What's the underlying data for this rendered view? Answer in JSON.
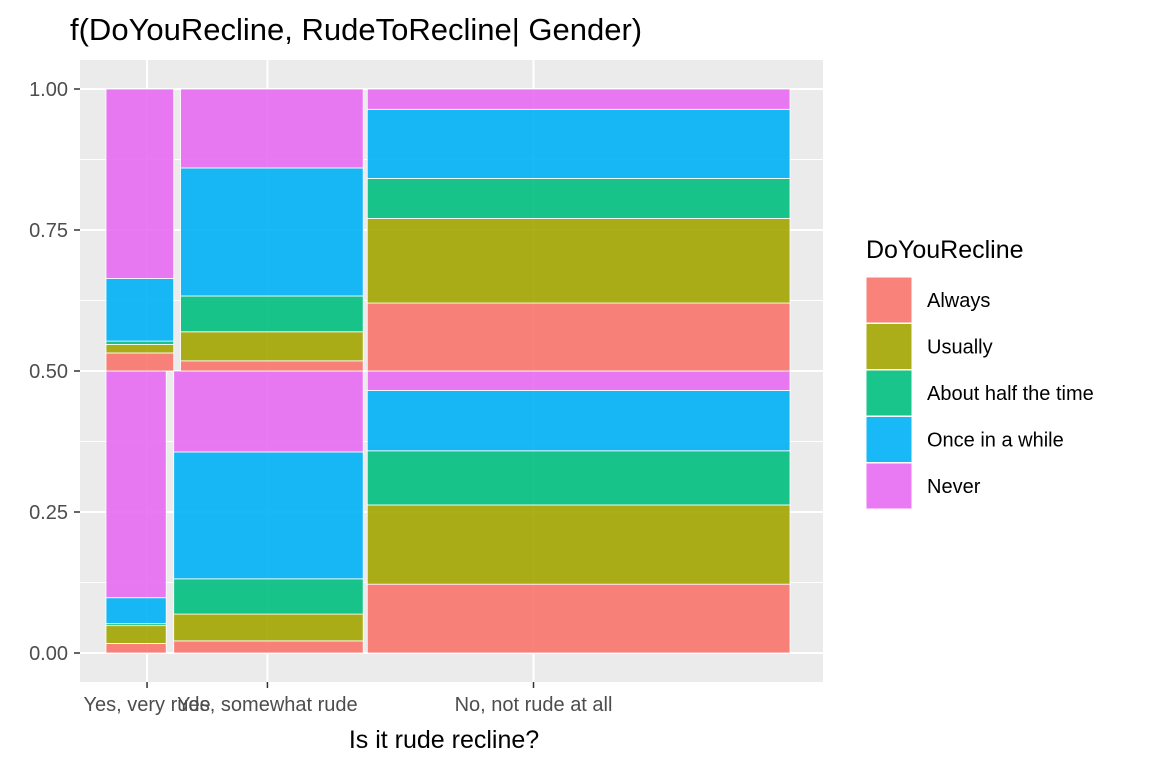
{
  "chart_data": {
    "type": "mosaic",
    "title": "f(DoYouRecline, RudeToRecline| Gender)",
    "xlabel": "Is it rude recline?",
    "ylabel": "",
    "ylim": [
      0,
      1
    ],
    "y_ticks": [
      "0.00",
      "0.25",
      "0.50",
      "0.75",
      "1.00"
    ],
    "y_tick_values": [
      0,
      0.25,
      0.5,
      0.75,
      1
    ],
    "x_tick_labels": [
      "Yes, very rude",
      "Yes, somewhat rude",
      "No, not rude at all"
    ],
    "grid": true,
    "legend": {
      "title": "DoYouRecline",
      "position": "right",
      "entries": [
        "Always",
        "Usually",
        "About half the time",
        "Once in a while",
        "Never"
      ]
    },
    "colors": [
      "#F8766D",
      "#A3A500",
      "#00BF7D",
      "#00B0F6",
      "#E76BF3"
    ],
    "x_extent": [
      0,
      1
    ],
    "x_tick_positions": [
      0.06,
      0.236,
      0.625
    ],
    "groups": [
      {
        "band": [
          0,
          0.5
        ],
        "columns": [
          {
            "x_range": [
              0.0,
              0.088
            ],
            "category": "Yes, very rude",
            "values": [
              0.034,
              0.063,
              0.007,
              0.092,
              0.804
            ]
          },
          {
            "x_range": [
              0.099,
              0.376
            ],
            "category": "Yes, somewhat rude",
            "values": [
              0.043,
              0.095,
              0.125,
              0.45,
              0.287
            ]
          },
          {
            "x_range": [
              0.382,
              1.0
            ],
            "category": "No, not rude at all",
            "values": [
              0.244,
              0.281,
              0.192,
              0.214,
              0.069
            ]
          }
        ]
      },
      {
        "band": [
          0.5,
          1.0
        ],
        "columns": [
          {
            "x_range": [
              0.0,
              0.099
            ],
            "category": "Yes, very rude",
            "values": [
              0.064,
              0.03,
              0.012,
              0.222,
              0.672
            ]
          },
          {
            "x_range": [
              0.109,
              0.376
            ],
            "category": "Yes, somewhat rude",
            "values": [
              0.036,
              0.103,
              0.127,
              0.454,
              0.28
            ]
          },
          {
            "x_range": [
              0.382,
              1.0
            ],
            "category": "No, not rude at all",
            "values": [
              0.241,
              0.3,
              0.142,
              0.245,
              0.072
            ]
          }
        ]
      }
    ]
  }
}
